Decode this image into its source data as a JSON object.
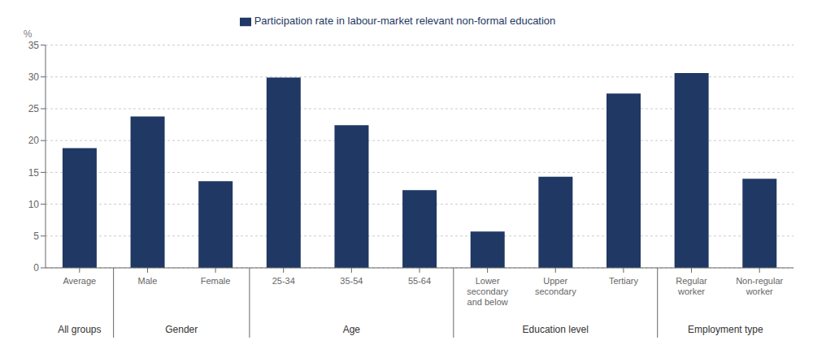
{
  "chart_data": {
    "type": "bar",
    "ylabel": "%",
    "categories": [
      "Average",
      "Male",
      "Female",
      "25-34",
      "35-54",
      "55-64",
      "Lower\nsecondary\nand below",
      "Upper\nsecondary",
      "Tertiary",
      "Regular\nworker",
      "Non-regular\nworker"
    ],
    "series": [
      {
        "name": "Participation rate in labour-market relevant non-formal education",
        "color": "#1F3864",
        "values": [
          18.8,
          23.8,
          13.6,
          29.9,
          22.4,
          12.2,
          5.7,
          14.3,
          27.4,
          30.6,
          14.0
        ]
      }
    ],
    "groups": [
      {
        "name": "All groups",
        "size": 1
      },
      {
        "name": "Gender",
        "size": 2
      },
      {
        "name": "Age",
        "size": 3
      },
      {
        "name": "Education level",
        "size": 3
      },
      {
        "name": "Employment type",
        "size": 2
      }
    ],
    "ylim": [
      0,
      35
    ],
    "yticks": [
      0,
      5,
      10,
      15,
      20,
      25,
      30,
      35
    ],
    "grid": true,
    "legend": "top"
  }
}
